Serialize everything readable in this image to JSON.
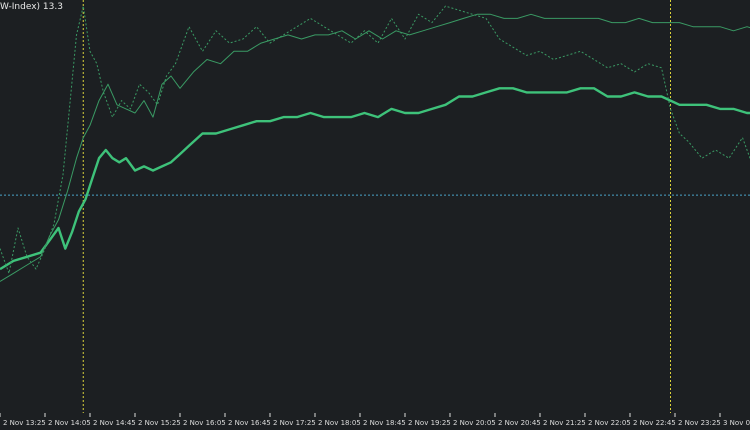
{
  "indicator_label": "W-Index) 13.3",
  "colors": {
    "background": "#1c1f22",
    "primary_line": "#3ec27a",
    "secondary_line": "#3a9a64",
    "separator_line": "#d9d23a",
    "level_line": "#4aa3c8",
    "axis_text": "#dcdcdc"
  },
  "chart_data": {
    "type": "line",
    "title": "",
    "xlabel": "",
    "ylabel": "",
    "x_ticks": [
      "2 Nov 13:25",
      "2 Nov 14:05",
      "2 Nov 14:45",
      "2 Nov 15:25",
      "2 Nov 16:05",
      "2 Nov 16:45",
      "2 Nov 17:25",
      "2 Nov 18:05",
      "2 Nov 18:45",
      "2 Nov 19:25",
      "2 Nov 20:05",
      "2 Nov 20:45",
      "2 Nov 21:25",
      "2 Nov 22:05",
      "2 Nov 22:45",
      "2 Nov 23:25",
      "3 Nov 0"
    ],
    "xlim": [
      0,
      17
    ],
    "ylim": [
      0,
      100
    ],
    "grid": false,
    "vertical_markers": [
      1.85,
      14.9
    ],
    "level_line": 53,
    "series": [
      {
        "style": "thick",
        "x": [
          0,
          0.3,
          0.6,
          0.9,
          1.1,
          1.3,
          1.45,
          1.6,
          1.75,
          1.9,
          2.05,
          2.2,
          2.35,
          2.5,
          2.65,
          2.8,
          3.0,
          3.2,
          3.4,
          3.6,
          3.8,
          4.0,
          4.2,
          4.5,
          4.8,
          5.1,
          5.4,
          5.7,
          6.0,
          6.3,
          6.6,
          6.9,
          7.2,
          7.5,
          7.8,
          8.1,
          8.4,
          8.7,
          9.0,
          9.3,
          9.6,
          9.9,
          10.2,
          10.5,
          10.8,
          11.1,
          11.4,
          11.7,
          12.0,
          12.3,
          12.6,
          12.9,
          13.2,
          13.5,
          13.8,
          14.1,
          14.4,
          14.7,
          14.9,
          15.1,
          15.4,
          15.7,
          16.0,
          16.3,
          16.6,
          16.9,
          17.0
        ],
        "y": [
          35,
          37,
          38,
          39,
          42,
          45,
          40,
          44,
          49,
          52,
          57,
          62,
          64,
          62,
          61,
          62,
          59,
          60,
          59,
          60,
          61,
          63,
          65,
          68,
          68,
          69,
          70,
          71,
          71,
          72,
          72,
          73,
          72,
          72,
          72,
          73,
          72,
          74,
          73,
          73,
          74,
          75,
          77,
          77,
          78,
          79,
          79,
          78,
          78,
          78,
          78,
          79,
          79,
          77,
          77,
          78,
          77,
          77,
          76,
          75,
          75,
          75,
          74,
          74,
          73,
          73,
          73
        ]
      },
      {
        "style": "thin",
        "x": [
          0,
          0.3,
          0.6,
          0.9,
          1.1,
          1.3,
          1.5,
          1.7,
          1.85,
          2.0,
          2.2,
          2.4,
          2.6,
          2.8,
          3.0,
          3.2,
          3.4,
          3.6,
          3.8,
          4.0,
          4.3,
          4.6,
          4.9,
          5.2,
          5.5,
          5.8,
          6.1,
          6.4,
          6.7,
          7.0,
          7.3,
          7.6,
          7.9,
          8.2,
          8.5,
          8.8,
          9.1,
          9.4,
          9.7,
          10.0,
          10.3,
          10.6,
          10.9,
          11.2,
          11.5,
          11.8,
          12.1,
          12.4,
          12.7,
          13.0,
          13.3,
          13.6,
          13.9,
          14.2,
          14.5,
          14.8,
          15.1,
          15.4,
          15.7,
          16.0,
          16.3,
          16.6,
          16.9,
          17.0
        ],
        "y": [
          32,
          34,
          36,
          38,
          43,
          47,
          54,
          62,
          67,
          70,
          76,
          80,
          75,
          74,
          73,
          76,
          72,
          80,
          82,
          79,
          83,
          86,
          85,
          88,
          88,
          90,
          91,
          92,
          91,
          92,
          92,
          93,
          91,
          93,
          91,
          93,
          92,
          93,
          94,
          95,
          96,
          97,
          97,
          96,
          96,
          97,
          96,
          96,
          96,
          96,
          96,
          95,
          95,
          96,
          95,
          95,
          95,
          94,
          94,
          94,
          93,
          94,
          93,
          93
        ]
      },
      {
        "style": "dotted",
        "x": [
          0,
          0.2,
          0.4,
          0.6,
          0.8,
          1.0,
          1.2,
          1.4,
          1.55,
          1.7,
          1.85,
          2.0,
          2.15,
          2.3,
          2.5,
          2.7,
          2.9,
          3.1,
          3.3,
          3.5,
          3.7,
          3.9,
          4.2,
          4.5,
          4.8,
          5.1,
          5.4,
          5.7,
          6.0,
          6.3,
          6.6,
          6.9,
          7.2,
          7.5,
          7.8,
          8.1,
          8.4,
          8.7,
          9.0,
          9.3,
          9.6,
          9.9,
          10.2,
          10.5,
          10.8,
          11.1,
          11.4,
          11.7,
          12.0,
          12.3,
          12.6,
          12.9,
          13.2,
          13.5,
          13.8,
          14.1,
          14.4,
          14.7,
          14.9,
          15.1,
          15.3,
          15.6,
          15.9,
          16.2,
          16.5,
          16.7,
          16.9,
          17.0
        ],
        "y": [
          40,
          34,
          45,
          38,
          35,
          40,
          46,
          58,
          75,
          92,
          99,
          88,
          85,
          78,
          72,
          76,
          74,
          80,
          78,
          75,
          82,
          85,
          94,
          88,
          93,
          90,
          91,
          94,
          90,
          92,
          94,
          96,
          94,
          92,
          90,
          93,
          90,
          96,
          91,
          97,
          95,
          99,
          98,
          97,
          96,
          91,
          89,
          87,
          88,
          86,
          87,
          88,
          86,
          84,
          85,
          83,
          85,
          84,
          74,
          68,
          66,
          62,
          64,
          62,
          67,
          61,
          50,
          38
        ]
      }
    ]
  }
}
